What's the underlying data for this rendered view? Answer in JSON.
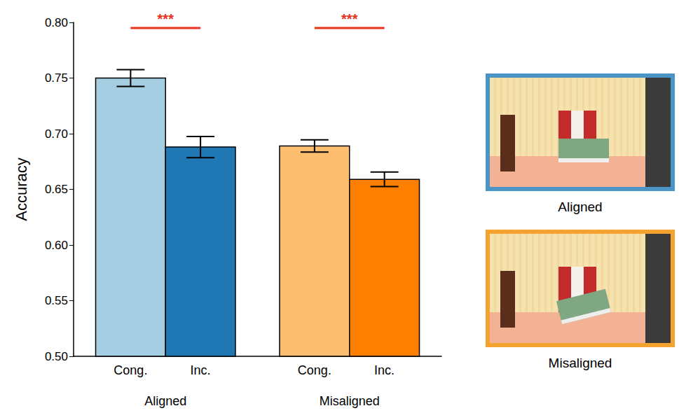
{
  "chart_data": {
    "type": "bar",
    "y_label": "Accuracy",
    "categories": [
      "Cong.",
      "Inc.",
      "Cong.",
      "Inc."
    ],
    "groups": [
      "Aligned",
      "Misaligned"
    ],
    "values": [
      0.75,
      0.688,
      0.689,
      0.659
    ],
    "error": [
      0.0075,
      0.0095,
      0.0055,
      0.0065
    ],
    "colors": [
      "#a6cee3",
      "#1f78b4",
      "#fdbf6f",
      "#ff7f00"
    ],
    "ylim": [
      0.5,
      0.8
    ],
    "yticks": [
      {
        "value": 0.5,
        "label": "0.50"
      },
      0.55,
      {
        "value": 0.6,
        "label": "0.60"
      },
      0.65,
      {
        "value": 0.7,
        "label": "0.70"
      },
      0.75,
      {
        "value": 0.8,
        "label": "0.80"
      }
    ],
    "grid": false,
    "significance": [
      {
        "bars": [
          0,
          1
        ],
        "label": "***",
        "y": 0.795,
        "color": "#e8301c"
      },
      {
        "bars": [
          2,
          3
        ],
        "label": "***",
        "y": 0.795,
        "color": "#e8301c"
      }
    ],
    "panels": [
      {
        "label": "Aligned",
        "color": "#4a95c6"
      },
      {
        "label": "Misaligned",
        "color": "#f5a330"
      }
    ]
  }
}
